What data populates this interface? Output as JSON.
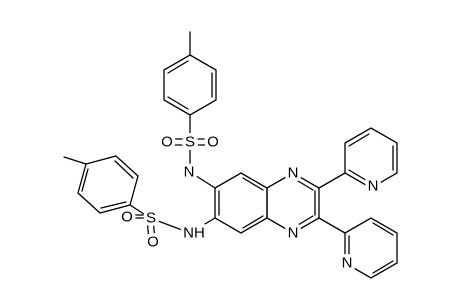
{
  "atoms": {
    "s_top": "S",
    "o_top_left": "O",
    "o_top_right": "O",
    "n_top": "N",
    "s_low": "S",
    "o_low_left": "O",
    "o_low_bottom": "O",
    "nh_low": "NH",
    "n_ring_top": "N",
    "n_ring_bottom": "N",
    "n_pyr_top": "N",
    "n_pyr_bottom": "N"
  }
}
